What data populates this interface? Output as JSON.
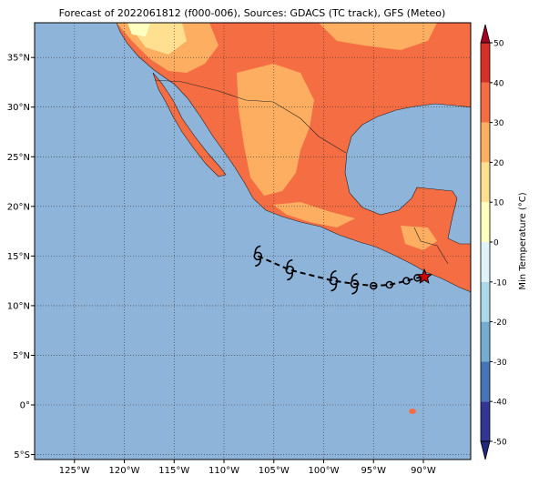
{
  "map": {
    "title": "Forecast of 2022061812 (f000-006), Sources: GDACS (TC track), GFS (Meteo)",
    "xlim": [
      -129,
      -85.25
    ],
    "ylim": [
      -5.5,
      38.5
    ],
    "xticks": [
      {
        "value": -125,
        "label": "125°W"
      },
      {
        "value": -120,
        "label": "120°W"
      },
      {
        "value": -115,
        "label": "115°W"
      },
      {
        "value": -110,
        "label": "110°W"
      },
      {
        "value": -105,
        "label": "105°W"
      },
      {
        "value": -100,
        "label": "100°W"
      },
      {
        "value": -95,
        "label": "95°W"
      },
      {
        "value": -90,
        "label": "90°W"
      }
    ],
    "yticks": [
      {
        "value": -5,
        "label": "5°S"
      },
      {
        "value": 0,
        "label": "0°"
      },
      {
        "value": 5,
        "label": "5°N"
      },
      {
        "value": 10,
        "label": "10°N"
      },
      {
        "value": 15,
        "label": "15°N"
      },
      {
        "value": 20,
        "label": "20°N"
      },
      {
        "value": 25,
        "label": "25°N"
      },
      {
        "value": 30,
        "label": "30°N"
      },
      {
        "value": 35,
        "label": "35°N"
      }
    ],
    "grid": true,
    "track": {
      "lon": [
        -106.6,
        -103.4,
        -99.0,
        -96.9,
        -95.0,
        -93.4,
        -91.7,
        -90.6,
        -89.9
      ],
      "lat": [
        15.0,
        13.6,
        12.5,
        12.2,
        12.0,
        12.1,
        12.5,
        12.8,
        12.9
      ],
      "marker": [
        "cyclone",
        "cyclone",
        "cyclone",
        "cyclone",
        "circle",
        "circle",
        "circle",
        "circle",
        "star"
      ]
    },
    "colorbar": {
      "label": "Min Temperature (°C)",
      "lim": [
        -50,
        50
      ],
      "ticks": [
        -50,
        -40,
        -30,
        -20,
        -10,
        0,
        10,
        20,
        30,
        40,
        50
      ],
      "colors": [
        "#313695",
        "#4575b4",
        "#74add1",
        "#abd9e9",
        "#e0f3f8",
        "#ffffbf",
        "#fee090",
        "#fdae61",
        "#f46d43",
        "#d73027"
      ],
      "under": "#22287a",
      "over": "#a50026"
    }
  }
}
